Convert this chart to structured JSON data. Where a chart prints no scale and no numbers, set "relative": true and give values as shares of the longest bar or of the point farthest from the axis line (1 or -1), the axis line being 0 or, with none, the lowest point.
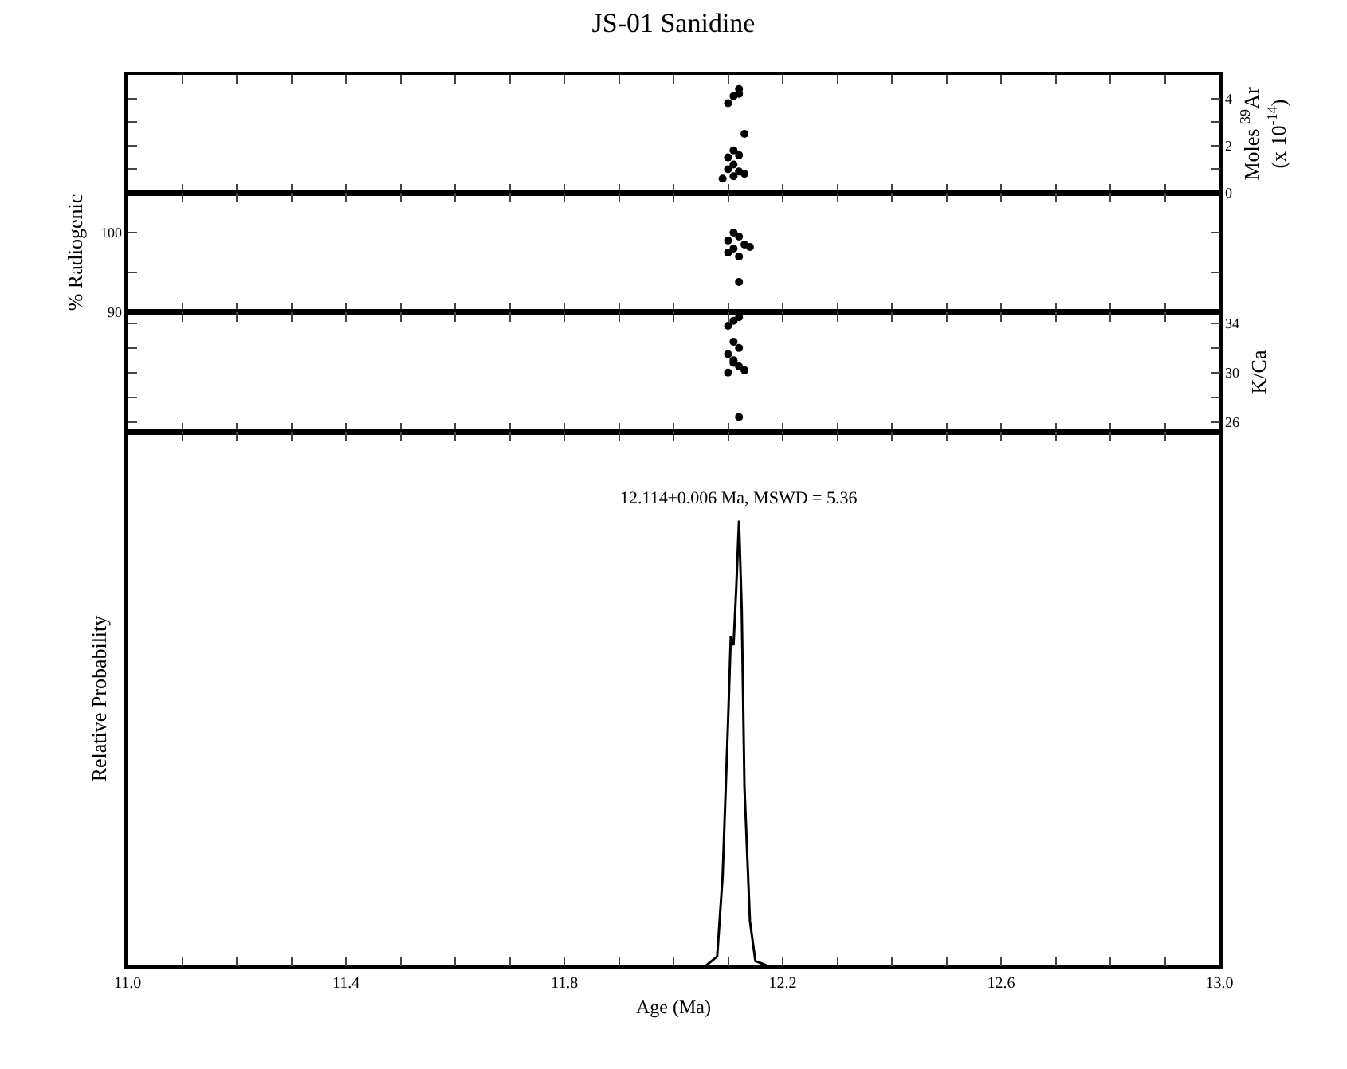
{
  "chart_data": [
    {
      "type": "scatter",
      "title": "JS-01 Sanidine",
      "ylabel": "Moles $^{39}$Ar (x 10$^{-14}$)",
      "xlim": [
        11.0,
        13.0
      ],
      "xticks": [
        {
          "value": 11,
          "label": null
        },
        {
          "value": 11.1,
          "label": null
        },
        {
          "value": 11.2,
          "label": null
        },
        {
          "value": 11.3,
          "label": null
        },
        {
          "value": 11.4,
          "label": null
        },
        {
          "value": 11.5,
          "label": null
        },
        {
          "value": 11.6,
          "label": null
        },
        {
          "value": 11.7,
          "label": null
        },
        {
          "value": 11.8,
          "label": null
        },
        {
          "value": 11.9,
          "label": null
        },
        {
          "value": 12,
          "label": null
        },
        {
          "value": 12.1,
          "label": null
        },
        {
          "value": 12.2,
          "label": null
        },
        {
          "value": 12.3,
          "label": null
        },
        {
          "value": 12.4,
          "label": null
        },
        {
          "value": 12.5,
          "label": null
        },
        {
          "value": 12.6,
          "label": null
        },
        {
          "value": 12.7,
          "label": null
        },
        {
          "value": 12.8,
          "label": null
        },
        {
          "value": 12.9,
          "label": null
        },
        {
          "value": 13,
          "label": null
        }
      ],
      "ylim": [
        0,
        5
      ],
      "yticks": [
        0,
        {
          "value": 1,
          "label": null
        },
        2,
        {
          "value": 3,
          "label": null
        },
        4
      ],
      "tick_labels": "y",
      "marker": "circle",
      "series": [
        {
          "color": "#000000",
          "x": [
            12.12,
            12.11,
            12.12,
            12.1,
            12.13,
            12.11,
            12.1,
            12.12,
            12.11,
            12.1,
            12.12,
            12.11,
            12.13,
            12.09
          ],
          "values": [
            4.4,
            4.1,
            4.2,
            3.8,
            2.5,
            1.8,
            1.5,
            1.6,
            1.2,
            1.0,
            0.9,
            0.7,
            0.8,
            0.6
          ]
        }
      ]
    },
    {
      "type": "scatter",
      "ylabel": "% Radiogenic",
      "xlim": [
        11.0,
        13.0
      ],
      "xticks": [
        {
          "value": 11,
          "label": null
        },
        {
          "value": 11.1,
          "label": null
        },
        {
          "value": 11.2,
          "label": null
        },
        {
          "value": 11.3,
          "label": null
        },
        {
          "value": 11.4,
          "label": null
        },
        {
          "value": 11.5,
          "label": null
        },
        {
          "value": 11.6,
          "label": null
        },
        {
          "value": 11.7,
          "label": null
        },
        {
          "value": 11.8,
          "label": null
        },
        {
          "value": 11.9,
          "label": null
        },
        {
          "value": 12,
          "label": null
        },
        {
          "value": 12.1,
          "label": null
        },
        {
          "value": 12.2,
          "label": null
        },
        {
          "value": 12.3,
          "label": null
        },
        {
          "value": 12.4,
          "label": null
        },
        {
          "value": 12.5,
          "label": null
        },
        {
          "value": 12.6,
          "label": null
        },
        {
          "value": 12.7,
          "label": null
        },
        {
          "value": 12.8,
          "label": null
        },
        {
          "value": 12.9,
          "label": null
        },
        {
          "value": 13,
          "label": null
        }
      ],
      "ylim": [
        90,
        105
      ],
      "yticks": [
        90,
        {
          "value": 95,
          "label": null
        },
        100
      ],
      "tick_labels": "y",
      "marker": "circle",
      "series": [
        {
          "color": "#000000",
          "x": [
            12.11,
            12.12,
            12.1,
            12.13,
            12.11,
            12.1,
            12.12,
            12.14,
            12.12
          ],
          "values": [
            100,
            99.5,
            99,
            98.5,
            98,
            97.5,
            97,
            98.2,
            93.8
          ]
        }
      ]
    },
    {
      "type": "scatter",
      "ylabel": "K/Ca",
      "xlim": [
        11.0,
        13.0
      ],
      "xticks": [
        {
          "value": 11,
          "label": null
        },
        {
          "value": 11.1,
          "label": null
        },
        {
          "value": 11.2,
          "label": null
        },
        {
          "value": 11.3,
          "label": null
        },
        {
          "value": 11.4,
          "label": null
        },
        {
          "value": 11.5,
          "label": null
        },
        {
          "value": 11.6,
          "label": null
        },
        {
          "value": 11.7,
          "label": null
        },
        {
          "value": 11.8,
          "label": null
        },
        {
          "value": 11.9,
          "label": null
        },
        {
          "value": 12,
          "label": null
        },
        {
          "value": 12.1,
          "label": null
        },
        {
          "value": 12.2,
          "label": null
        },
        {
          "value": 12.3,
          "label": null
        },
        {
          "value": 12.4,
          "label": null
        },
        {
          "value": 12.5,
          "label": null
        },
        {
          "value": 12.6,
          "label": null
        },
        {
          "value": 12.7,
          "label": null
        },
        {
          "value": 12.8,
          "label": null
        },
        {
          "value": 12.9,
          "label": null
        },
        {
          "value": 13,
          "label": null
        }
      ],
      "ylim": [
        25.2,
        34.9
      ],
      "yticks": [
        26,
        {
          "value": 28,
          "label": null
        },
        30,
        {
          "value": 32,
          "label": null
        },
        34
      ],
      "tick_labels": "y",
      "marker": "circle",
      "series": [
        {
          "color": "#000000",
          "x": [
            12.11,
            12.12,
            12.1,
            12.11,
            12.12,
            12.1,
            12.11,
            12.12,
            12.1,
            12.13,
            12.11,
            12.12
          ],
          "values": [
            34.2,
            34.5,
            33.8,
            32.5,
            32,
            31.5,
            31,
            30.5,
            30,
            30.2,
            30.8,
            26.4
          ]
        }
      ]
    },
    {
      "type": "line",
      "relative": true,
      "xlabel": "Age (Ma)",
      "ylabel": "Relative Probability",
      "xlim": [
        11.0,
        13.0
      ],
      "xticks": [
        {
          "value": 11,
          "label": "11.0"
        },
        {
          "value": 11.1,
          "label": null
        },
        {
          "value": 11.2,
          "label": null
        },
        {
          "value": 11.3,
          "label": null
        },
        {
          "value": 11.4,
          "label": "11.4"
        },
        {
          "value": 11.5,
          "label": null
        },
        {
          "value": 11.6,
          "label": null
        },
        {
          "value": 11.7,
          "label": null
        },
        {
          "value": 11.8,
          "label": "11.8"
        },
        {
          "value": 11.9,
          "label": null
        },
        {
          "value": 12,
          "label": null
        },
        {
          "value": 12.1,
          "label": null
        },
        {
          "value": 12.2,
          "label": "12.2"
        },
        {
          "value": 12.3,
          "label": null
        },
        {
          "value": 12.4,
          "label": null
        },
        {
          "value": 12.5,
          "label": null
        },
        {
          "value": 12.6,
          "label": "12.6"
        },
        {
          "value": 12.7,
          "label": null
        },
        {
          "value": 12.8,
          "label": null
        },
        {
          "value": 12.9,
          "label": null
        },
        {
          "value": 13,
          "label": "13.0"
        }
      ],
      "annotations": [
        "12.114±0.006 Ma, MSWD = 5.36"
      ],
      "series": [
        {
          "color": "#000000",
          "x": [
            12.06,
            12.08,
            12.09,
            12.1,
            12.105,
            12.11,
            12.115,
            12.12,
            12.125,
            12.13,
            12.14,
            12.15,
            12.17
          ],
          "values": [
            0,
            0.02,
            0.2,
            0.55,
            0.74,
            0.72,
            0.85,
            1,
            0.8,
            0.4,
            0.1,
            0.01,
            0
          ]
        }
      ]
    }
  ]
}
